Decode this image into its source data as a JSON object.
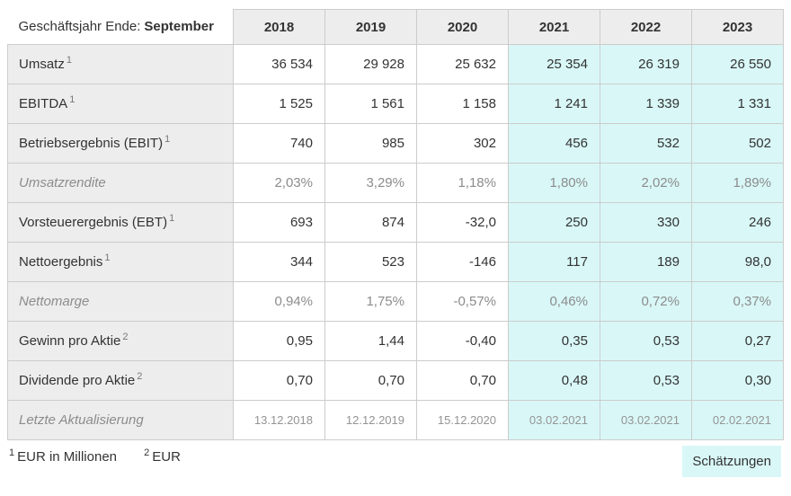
{
  "chart_data": {
    "type": "table",
    "title": "Geschäftsjahr Ende: September",
    "corner": {
      "prefix": "Geschäftsjahr Ende:",
      "month": "September"
    },
    "columns": [
      "2018",
      "2019",
      "2020",
      "2021",
      "2022",
      "2023"
    ],
    "estimate_from_index": 3,
    "estimate_columns": [
      "2021",
      "2022",
      "2023"
    ],
    "rows": [
      {
        "label": "Umsatz",
        "sup": "1",
        "muted": false,
        "small": false,
        "values": [
          "36 534",
          "29 928",
          "25 632",
          "25 354",
          "26 319",
          "26 550"
        ]
      },
      {
        "label": "EBITDA",
        "sup": "1",
        "muted": false,
        "small": false,
        "values": [
          "1 525",
          "1 561",
          "1 158",
          "1 241",
          "1 339",
          "1 331"
        ]
      },
      {
        "label": "Betriebsergebnis (EBIT)",
        "sup": "1",
        "muted": false,
        "small": false,
        "values": [
          "740",
          "985",
          "302",
          "456",
          "532",
          "502"
        ]
      },
      {
        "label": "Umsatzrendite",
        "sup": "",
        "muted": true,
        "small": false,
        "values": [
          "2,03%",
          "3,29%",
          "1,18%",
          "1,80%",
          "2,02%",
          "1,89%"
        ]
      },
      {
        "label": "Vorsteuerergebnis (EBT)",
        "sup": "1",
        "muted": false,
        "small": false,
        "values": [
          "693",
          "874",
          "-32,0",
          "250",
          "330",
          "246"
        ]
      },
      {
        "label": "Nettoergebnis",
        "sup": "1",
        "muted": false,
        "small": false,
        "values": [
          "344",
          "523",
          "-146",
          "117",
          "189",
          "98,0"
        ]
      },
      {
        "label": "Nettomarge",
        "sup": "",
        "muted": true,
        "small": false,
        "values": [
          "0,94%",
          "1,75%",
          "-0,57%",
          "0,46%",
          "0,72%",
          "0,37%"
        ]
      },
      {
        "label": "Gewinn pro Aktie",
        "sup": "2",
        "muted": false,
        "small": false,
        "values": [
          "0,95",
          "1,44",
          "-0,40",
          "0,35",
          "0,53",
          "0,27"
        ]
      },
      {
        "label": "Dividende pro Aktie",
        "sup": "2",
        "muted": false,
        "small": false,
        "values": [
          "0,70",
          "0,70",
          "0,70",
          "0,48",
          "0,53",
          "0,30"
        ]
      },
      {
        "label": "Letzte Aktualisierung",
        "sup": "",
        "muted": true,
        "small": true,
        "values": [
          "13.12.2018",
          "12.12.2019",
          "15.12.2020",
          "03.02.2021",
          "03.02.2021",
          "02.02.2021"
        ]
      }
    ]
  },
  "footnotes": [
    {
      "sup": "1",
      "text": "EUR in Millionen"
    },
    {
      "sup": "2",
      "text": "EUR"
    }
  ],
  "legend": {
    "estimates_label": "Schätzungen"
  },
  "colors": {
    "estimate_bg": "#d9f7f7",
    "header_bg": "#ededed",
    "border": "#cccccc",
    "text": "#333333",
    "muted_text": "#8c8c8c",
    "date_text": "#949494"
  }
}
